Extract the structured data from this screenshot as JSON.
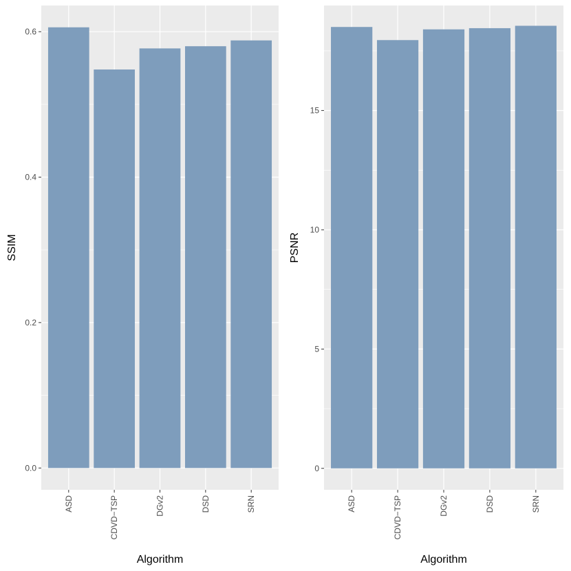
{
  "chart_data": [
    {
      "type": "bar",
      "categories": [
        "ASD",
        "CDVD−TSP",
        "DGv2",
        "DSD",
        "SRN"
      ],
      "values": [
        0.606,
        0.548,
        0.577,
        0.58,
        0.588
      ],
      "xlabel": "Algorithm",
      "ylabel": "SSIM",
      "ylim": [
        -0.03,
        0.636
      ],
      "yticks": [
        0.0,
        0.2,
        0.4,
        0.6
      ],
      "ytick_labels": [
        "0.0",
        "0.2",
        "0.4",
        "0.6"
      ],
      "grid": true,
      "bar_color": "#7a9aba",
      "panel_background": "#ebebeb"
    },
    {
      "type": "bar",
      "categories": [
        "ASD",
        "CDVD−TSP",
        "DGv2",
        "DSD",
        "SRN"
      ],
      "values": [
        18.5,
        17.95,
        18.4,
        18.45,
        18.55
      ],
      "xlabel": "Algorithm",
      "ylabel": "PSNR",
      "ylim": [
        -0.9,
        19.4
      ],
      "yticks": [
        0,
        5,
        10,
        15
      ],
      "ytick_labels": [
        "0",
        "5",
        "10",
        "15"
      ],
      "grid": true,
      "bar_color": "#7a9aba",
      "panel_background": "#ebebeb"
    }
  ]
}
